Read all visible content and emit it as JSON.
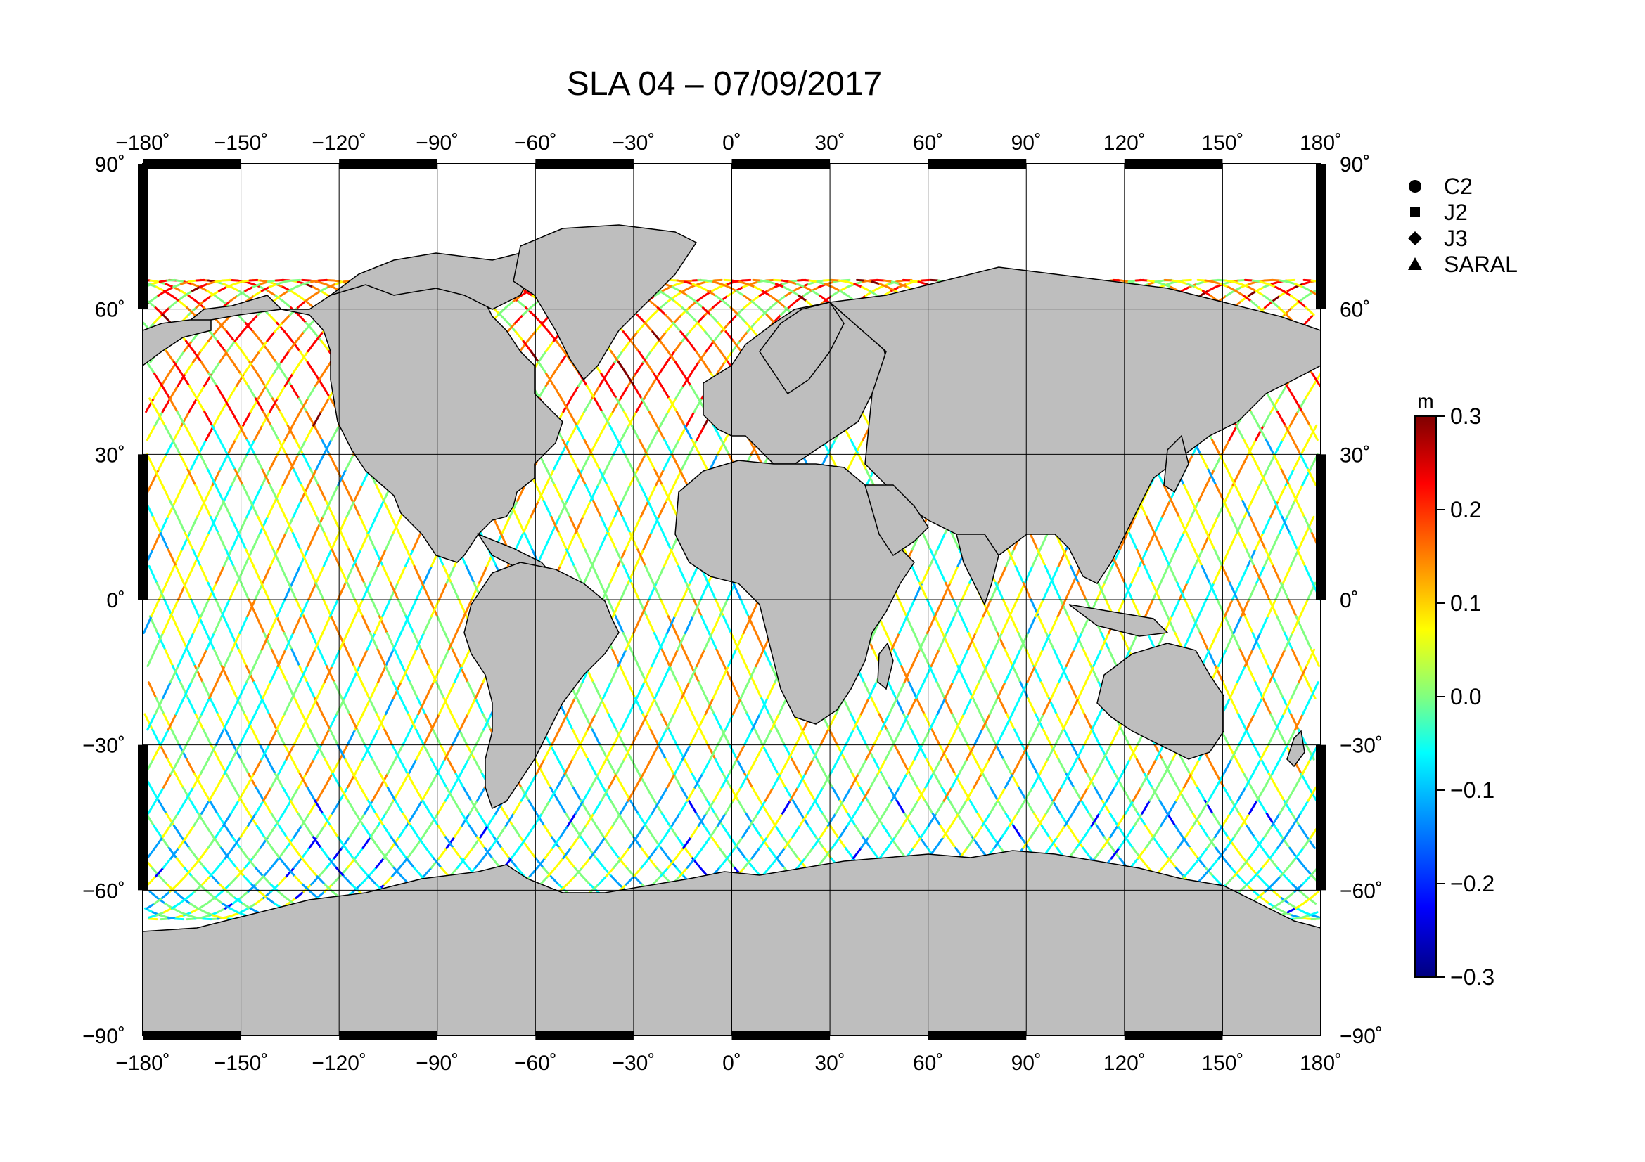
{
  "title": "SLA 04 – 07/09/2017",
  "axes": {
    "lon_ticks": [
      "−180˚",
      "−150˚",
      "−120˚",
      "−90˚",
      "−60˚",
      "−30˚",
      "0˚",
      "30˚",
      "60˚",
      "90˚",
      "120˚",
      "150˚",
      "180˚"
    ],
    "lat_ticks": [
      "90˚",
      "60˚",
      "30˚",
      "0˚",
      "−30˚",
      "−60˚",
      "−90˚"
    ],
    "lon_values": [
      -180,
      -150,
      -120,
      -90,
      -60,
      -30,
      0,
      30,
      60,
      90,
      120,
      150,
      180
    ],
    "lat_values": [
      90,
      60,
      30,
      0,
      -30,
      -60,
      -90
    ],
    "lon_range": [
      -180,
      180
    ],
    "lat_range": [
      -90,
      90
    ],
    "grid": true
  },
  "legend": {
    "placement": "top-right",
    "items": [
      {
        "label": "C2",
        "symbol": "circle"
      },
      {
        "label": "J2",
        "symbol": "square"
      },
      {
        "label": "J3",
        "symbol": "diamond"
      },
      {
        "label": "SARAL",
        "symbol": "triangle"
      }
    ]
  },
  "colorbar": {
    "unit": "m",
    "range": [
      -0.3,
      0.3
    ],
    "tick_values": [
      0.3,
      0.2,
      0.1,
      0.0,
      -0.1,
      -0.2,
      -0.3
    ],
    "tick_labels": [
      "0.3",
      "0.2",
      "0.1",
      "0.0",
      "−0.1",
      "−0.2",
      "−0.3"
    ],
    "colormap": [
      "#00007f",
      "#0000ff",
      "#00a0ff",
      "#00ffff",
      "#80ff80",
      "#ffff00",
      "#ff8000",
      "#ff0000",
      "#7f0000"
    ]
  },
  "colors": {
    "land": "#bebebe",
    "ocean": "#ffffff",
    "frame": "#000000"
  }
}
